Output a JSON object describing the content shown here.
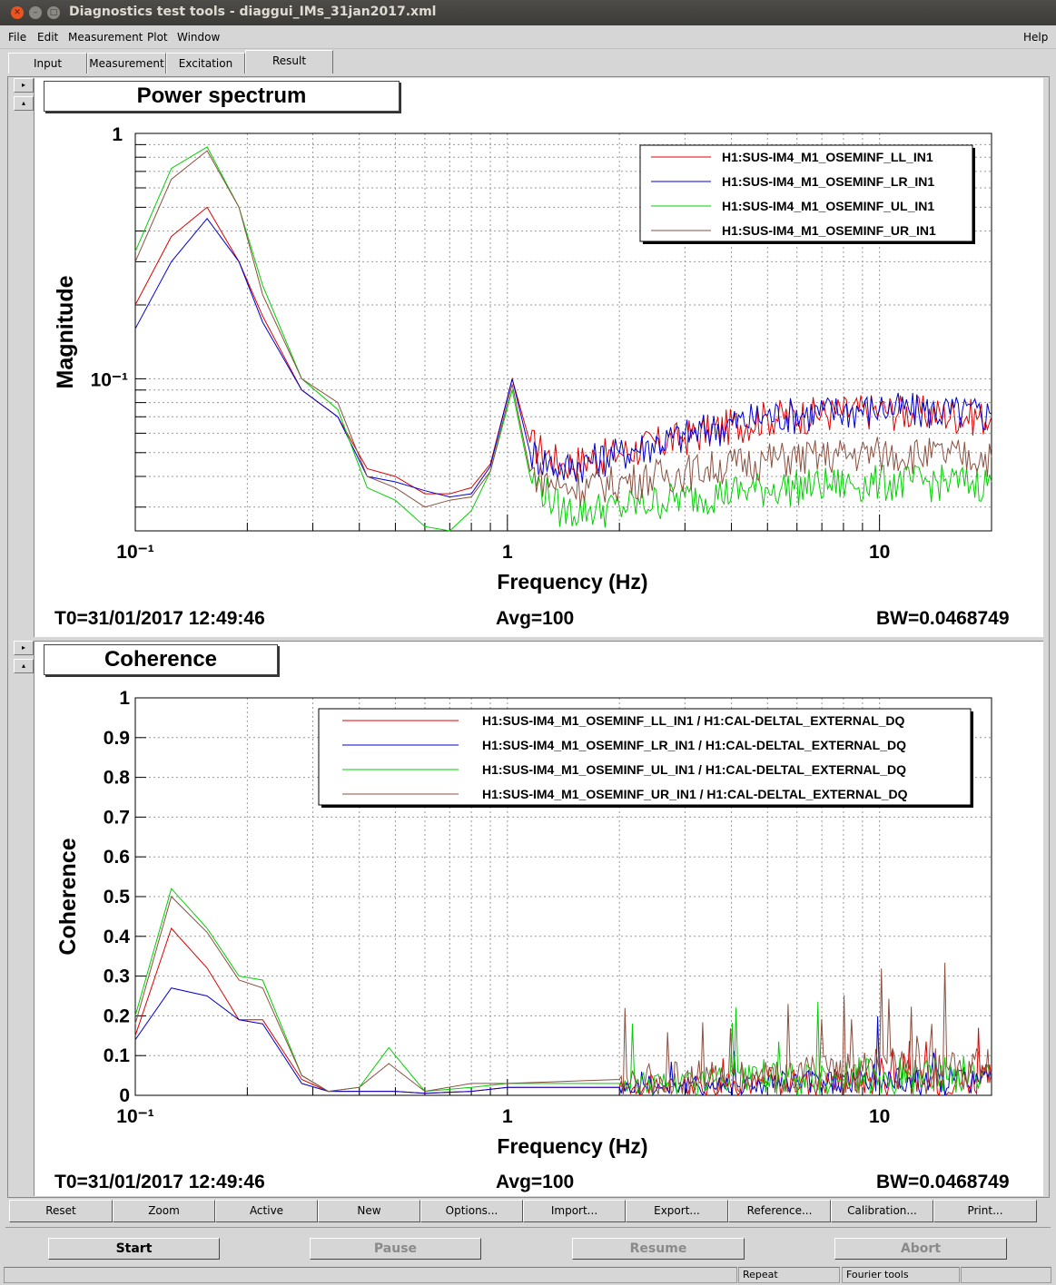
{
  "window": {
    "title": "Diagnostics test tools - diaggui_IMs_31jan2017.xml"
  },
  "menu": {
    "file": "File",
    "edit": "Edit",
    "measurement": "Measurement",
    "plot": "Plot",
    "window": "Window",
    "help": "Help"
  },
  "tabs": [
    {
      "label": "Input"
    },
    {
      "label": "Measurement"
    },
    {
      "label": "Excitation"
    },
    {
      "label": "Result"
    }
  ],
  "plot1": {
    "title": "Power spectrum",
    "t0": "T0=31/01/2017 12:49:46",
    "avg": "Avg=100",
    "bw": "BW=0.0468749"
  },
  "plot2": {
    "title": "Coherence",
    "t0": "T0=31/01/2017 12:49:46",
    "avg": "Avg=100",
    "bw": "BW=0.0468749"
  },
  "buttons": {
    "reset": "Reset",
    "zoom": "Zoom",
    "active": "Active",
    "new": "New",
    "options": "Options...",
    "import": "Import...",
    "export": "Export...",
    "reference": "Reference...",
    "calibration": "Calibration...",
    "print": "Print..."
  },
  "controls": {
    "start": "Start",
    "pause": "Pause",
    "resume": "Resume",
    "abort": "Abort"
  },
  "status": {
    "repeat": "Repeat",
    "fourier": "Fourier tools"
  },
  "chart_data": [
    {
      "type": "line",
      "title": "Power spectrum",
      "xlabel": "Frequency (Hz)",
      "ylabel": "Magnitude",
      "xscale": "log",
      "yscale": "log",
      "xlim": [
        0.1,
        20
      ],
      "ylim": [
        0.024,
        1
      ],
      "xticklabels": [
        "10⁻¹",
        "1",
        "10"
      ],
      "yticklabels": [
        "1",
        "10⁻¹"
      ],
      "legend_position": "top-right",
      "series": [
        {
          "name": "H1:SUS-IM4_M1_OSEMINF_LL_IN1",
          "color": "#e00000",
          "x": [
            0.1,
            0.125,
            0.156,
            0.19,
            0.22,
            0.28,
            0.35,
            0.42,
            0.5,
            0.6,
            0.7,
            0.8,
            0.9,
            1.03,
            1.15,
            1.4,
            2,
            3,
            5,
            10,
            20
          ],
          "y": [
            0.2,
            0.38,
            0.5,
            0.3,
            0.18,
            0.09,
            0.07,
            0.043,
            0.04,
            0.034,
            0.034,
            0.036,
            0.045,
            0.1,
            0.055,
            0.045,
            0.05,
            0.058,
            0.07,
            0.075,
            0.07
          ]
        },
        {
          "name": "H1:SUS-IM4_M1_OSEMINF_LR_IN1",
          "color": "#0000d0",
          "x": [
            0.1,
            0.125,
            0.156,
            0.19,
            0.22,
            0.28,
            0.35,
            0.42,
            0.5,
            0.6,
            0.7,
            0.8,
            0.9,
            1.03,
            1.15,
            1.4,
            2,
            3,
            5,
            10,
            20
          ],
          "y": [
            0.16,
            0.3,
            0.45,
            0.3,
            0.17,
            0.09,
            0.07,
            0.04,
            0.038,
            0.035,
            0.033,
            0.034,
            0.044,
            0.1,
            0.05,
            0.043,
            0.05,
            0.059,
            0.071,
            0.076,
            0.072
          ]
        },
        {
          "name": "H1:SUS-IM4_M1_OSEMINF_UL_IN1",
          "color": "#00d000",
          "x": [
            0.1,
            0.125,
            0.156,
            0.19,
            0.22,
            0.28,
            0.35,
            0.42,
            0.5,
            0.6,
            0.7,
            0.8,
            0.9,
            1.03,
            1.15,
            1.4,
            2,
            3,
            5,
            10,
            20
          ],
          "y": [
            0.33,
            0.72,
            0.88,
            0.5,
            0.24,
            0.1,
            0.075,
            0.036,
            0.032,
            0.025,
            0.024,
            0.029,
            0.042,
            0.09,
            0.04,
            0.029,
            0.03,
            0.033,
            0.036,
            0.038,
            0.038
          ]
        },
        {
          "name": "H1:SUS-IM4_M1_OSEMINF_UR_IN1",
          "color": "#8b5040",
          "x": [
            0.1,
            0.125,
            0.156,
            0.19,
            0.22,
            0.28,
            0.35,
            0.42,
            0.5,
            0.6,
            0.7,
            0.8,
            0.9,
            1.03,
            1.15,
            1.4,
            2,
            3,
            5,
            10,
            20
          ],
          "y": [
            0.3,
            0.65,
            0.85,
            0.5,
            0.22,
            0.1,
            0.08,
            0.04,
            0.036,
            0.03,
            0.032,
            0.033,
            0.042,
            0.095,
            0.042,
            0.036,
            0.038,
            0.042,
            0.047,
            0.05,
            0.048
          ]
        }
      ]
    },
    {
      "type": "line",
      "title": "Coherence",
      "xlabel": "Frequency (Hz)",
      "ylabel": "Coherence",
      "xscale": "log",
      "yscale": "linear",
      "xlim": [
        0.1,
        20
      ],
      "ylim": [
        0,
        1
      ],
      "xticklabels": [
        "10⁻¹",
        "1",
        "10"
      ],
      "yticklabels": [
        "0",
        "0.1",
        "0.2",
        "0.3",
        "0.4",
        "0.5",
        "0.6",
        "0.7",
        "0.8",
        "0.9",
        "1"
      ],
      "legend_position": "top-right",
      "series": [
        {
          "name": "H1:SUS-IM4_M1_OSEMINF_LL_IN1 / H1:CAL-DELTAL_EXTERNAL_DQ",
          "color": "#e00000",
          "x": [
            0.1,
            0.125,
            0.156,
            0.19,
            0.22,
            0.28,
            0.33,
            0.4,
            0.5,
            0.6,
            0.8,
            1,
            2,
            5,
            10,
            20
          ],
          "y": [
            0.15,
            0.42,
            0.32,
            0.19,
            0.19,
            0.04,
            0.01,
            0.01,
            0.01,
            0.005,
            0.01,
            0.02,
            0.02,
            0.03,
            0.04,
            0.04
          ]
        },
        {
          "name": "H1:SUS-IM4_M1_OSEMINF_LR_IN1 / H1:CAL-DELTAL_EXTERNAL_DQ",
          "color": "#0000d0",
          "x": [
            0.1,
            0.125,
            0.156,
            0.19,
            0.22,
            0.28,
            0.33,
            0.4,
            0.5,
            0.6,
            0.8,
            1,
            2,
            5,
            10,
            20
          ],
          "y": [
            0.14,
            0.27,
            0.25,
            0.19,
            0.18,
            0.03,
            0.01,
            0.01,
            0.01,
            0.005,
            0.01,
            0.02,
            0.02,
            0.03,
            0.04,
            0.04
          ]
        },
        {
          "name": "H1:SUS-IM4_M1_OSEMINF_UL_IN1 / H1:CAL-DELTAL_EXTERNAL_DQ",
          "color": "#00d000",
          "x": [
            0.1,
            0.125,
            0.156,
            0.19,
            0.22,
            0.28,
            0.33,
            0.4,
            0.48,
            0.6,
            0.8,
            1,
            2,
            5,
            10,
            20
          ],
          "y": [
            0.2,
            0.52,
            0.42,
            0.3,
            0.29,
            0.05,
            0.01,
            0.02,
            0.12,
            0.01,
            0.02,
            0.03,
            0.03,
            0.04,
            0.05,
            0.05
          ]
        },
        {
          "name": "H1:SUS-IM4_M1_OSEMINF_UR_IN1 / H1:CAL-DELTAL_EXTERNAL_DQ",
          "color": "#8b5040",
          "x": [
            0.1,
            0.125,
            0.156,
            0.19,
            0.22,
            0.28,
            0.33,
            0.4,
            0.48,
            0.6,
            0.8,
            1,
            2,
            5,
            10,
            20
          ],
          "y": [
            0.18,
            0.5,
            0.41,
            0.29,
            0.27,
            0.05,
            0.01,
            0.02,
            0.08,
            0.01,
            0.03,
            0.03,
            0.04,
            0.05,
            0.06,
            0.06
          ]
        }
      ]
    }
  ]
}
